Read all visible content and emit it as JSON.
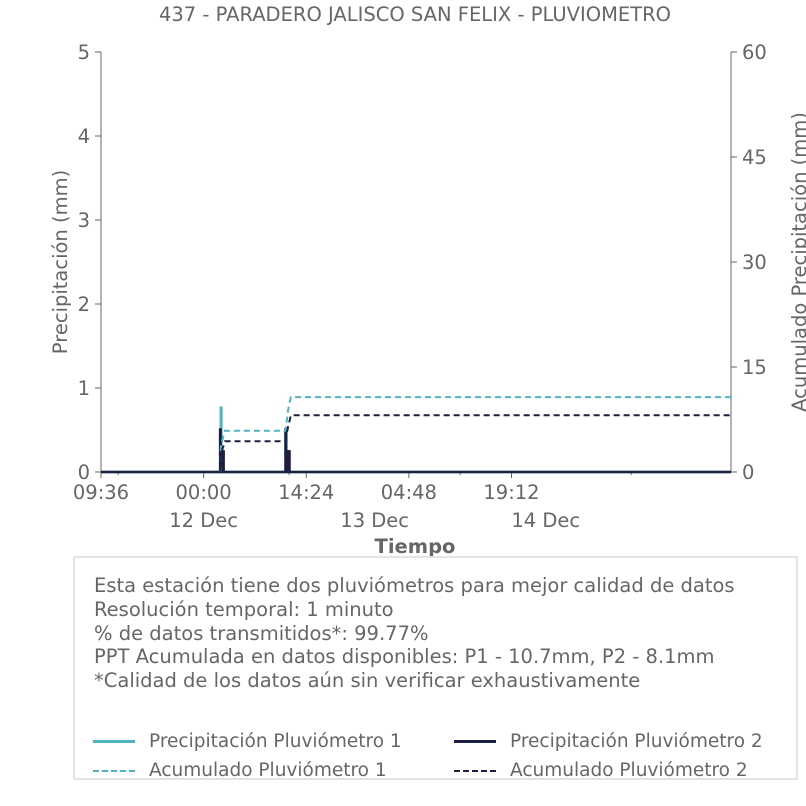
{
  "colors": {
    "p1": "#4fb3c0",
    "p2": "#1d1f40",
    "axis": "#666666",
    "box_border": "#e3e3e3"
  },
  "chart_data": {
    "type": "line",
    "title": "437 - PARADERO JALISCO SAN FELIX - PLUVIOMETRO",
    "xlabel": "Tiempo",
    "ylabel": "Precipitación (mm)",
    "y2label": "Acumulado Precipitación (mm)",
    "x_tick_labels": [
      "09:36",
      "00:00",
      "14:24",
      "04:48",
      "19:12"
    ],
    "x_date_labels": [
      "12 Dec",
      "13 Dec",
      "14 Dec"
    ],
    "ylim": [
      0,
      5
    ],
    "y_ticks": [
      0,
      1,
      2,
      3,
      4,
      5
    ],
    "y2lim": [
      0,
      60
    ],
    "y2_ticks": [
      0,
      15,
      30,
      45,
      60
    ],
    "xlim": [
      "2023-12-11 09:36",
      "2023-12-15 02:00"
    ],
    "grid": false,
    "series": [
      {
        "name": "Precipitación Pluviómetro 1",
        "axis": "left",
        "style": "solid",
        "x": [
          "2023-12-12 02:26",
          "2023-12-12 02:27",
          "2023-12-12 02:28",
          "2023-12-12 02:45",
          "2023-12-12 02:46",
          "2023-12-12 02:47",
          "2023-12-12 11:35",
          "2023-12-12 11:36",
          "2023-12-12 11:37"
        ],
        "y": [
          0,
          0.78,
          0,
          0,
          0.25,
          0,
          0,
          0.52,
          0
        ]
      },
      {
        "name": "Precipitación Pluviómetro 2",
        "axis": "left",
        "style": "solid",
        "x": [
          "2023-12-12 02:20",
          "2023-12-12 02:21",
          "2023-12-12 02:22",
          "2023-12-12 02:26",
          "2023-12-12 02:27",
          "2023-12-12 02:28",
          "2023-12-12 02:33",
          "2023-12-12 02:34",
          "2023-12-12 02:35",
          "2023-12-12 02:45",
          "2023-12-12 02:46",
          "2023-12-12 02:47",
          "2023-12-12 11:30",
          "2023-12-12 11:31",
          "2023-12-12 11:32",
          "2023-12-12 11:38",
          "2023-12-12 11:39",
          "2023-12-12 11:40",
          "2023-12-12 11:46",
          "2023-12-12 11:47",
          "2023-12-12 11:48",
          "2023-12-12 12:00",
          "2023-12-12 12:01",
          "2023-12-12 12:02"
        ],
        "y": [
          0,
          0.52,
          0,
          0,
          0.26,
          0,
          0,
          0.26,
          0,
          0,
          0.26,
          0,
          0,
          0.52,
          0,
          0,
          0.26,
          0,
          0,
          0.26,
          0,
          0,
          0.26,
          0
        ]
      },
      {
        "name": "Acumulado Pluviómetro 1",
        "axis": "right",
        "style": "dashed",
        "x": [
          "2023-12-11 09:36",
          "2023-12-12 02:20",
          "2023-12-12 02:26",
          "2023-12-12 03:00",
          "2023-12-12 11:30",
          "2023-12-12 11:50",
          "2023-12-12 12:15",
          "2023-12-15 02:00"
        ],
        "y": [
          0,
          0,
          3.9,
          5.9,
          5.9,
          8.8,
          10.7,
          10.7
        ]
      },
      {
        "name": "Acumulado Pluviómetro 2",
        "axis": "right",
        "style": "dashed",
        "x": [
          "2023-12-11 09:36",
          "2023-12-12 02:18",
          "2023-12-12 02:26",
          "2023-12-12 03:00",
          "2023-12-12 11:28",
          "2023-12-12 11:50",
          "2023-12-12 12:15",
          "2023-12-15 02:00"
        ],
        "y": [
          0,
          0,
          2.6,
          4.4,
          4.4,
          6.4,
          8.1,
          8.1
        ]
      }
    ],
    "legend_placement": "below"
  },
  "info": {
    "lines": [
      "Esta estación tiene dos pluviómetros para mejor calidad de datos",
      "Resolución temporal: 1 minuto",
      "% de datos transmitidos*: 99.77%",
      "PPT Acumulada en datos disponibles: P1 - 10.7mm, P2 - 8.1mm",
      "*Calidad de los datos aún sin verificar exhaustivamente"
    ]
  },
  "legend": {
    "p1_precip": "Precipitación Pluviómetro 1",
    "p2_precip": "Precipitación Pluviómetro 2",
    "p1_acum": "Acumulado Pluviómetro 1",
    "p2_acum": "Acumulado Pluviómetro 2"
  }
}
